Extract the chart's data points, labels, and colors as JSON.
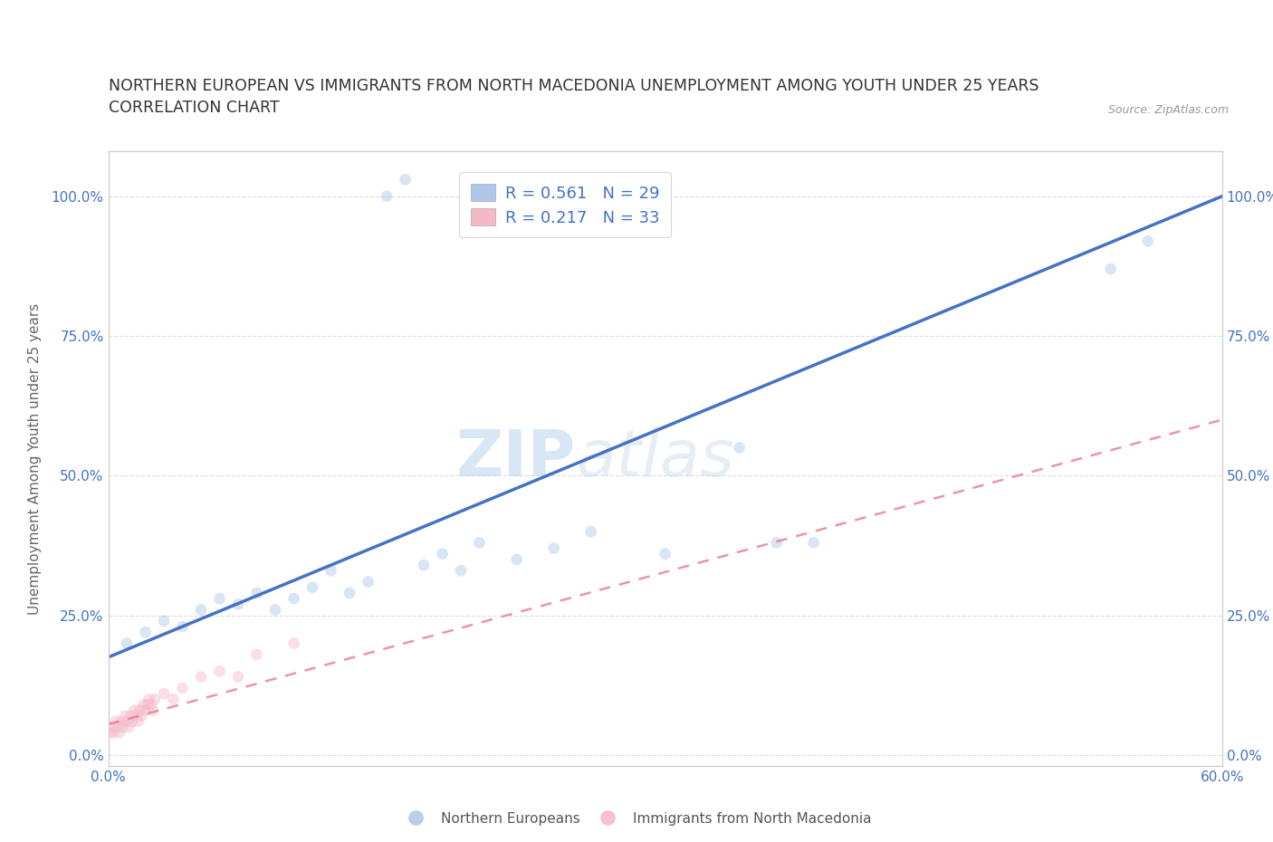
{
  "title_line1": "NORTHERN EUROPEAN VS IMMIGRANTS FROM NORTH MACEDONIA UNEMPLOYMENT AMONG YOUTH UNDER 25 YEARS",
  "title_line2": "CORRELATION CHART",
  "source": "Source: ZipAtlas.com",
  "ylabel": "Unemployment Among Youth under 25 years",
  "xmin": 0.0,
  "xmax": 0.6,
  "ymin": -0.02,
  "ymax": 1.08,
  "xticks": [
    0.0,
    0.1,
    0.2,
    0.3,
    0.4,
    0.5,
    0.6
  ],
  "yticks": [
    0.0,
    0.25,
    0.5,
    0.75,
    1.0
  ],
  "ytick_labels": [
    "0.0%",
    "25.0%",
    "50.0%",
    "75.0%",
    "100.0%"
  ],
  "xtick_labels": [
    "0.0%",
    "",
    "",
    "",
    "",
    "",
    "60.0%"
  ],
  "watermark_zip": "ZIP",
  "watermark_atlas": "atlas",
  "blue_color": "#aec6e8",
  "pink_color": "#f5b8c8",
  "blue_line_color": "#4472c4",
  "pink_line_color": "#e8708a",
  "legend_blue_label_r": "R = 0.561",
  "legend_blue_label_n": "N = 29",
  "legend_pink_label_r": "R = 0.217",
  "legend_pink_label_n": "N = 33",
  "blue_x": [
    0.01,
    0.02,
    0.03,
    0.04,
    0.05,
    0.06,
    0.07,
    0.08,
    0.09,
    0.1,
    0.11,
    0.12,
    0.13,
    0.14,
    0.15,
    0.16,
    0.17,
    0.18,
    0.19,
    0.2,
    0.22,
    0.24,
    0.26,
    0.3,
    0.34,
    0.36,
    0.38,
    0.54,
    0.56
  ],
  "blue_y": [
    0.2,
    0.22,
    0.24,
    0.23,
    0.26,
    0.28,
    0.27,
    0.29,
    0.26,
    0.28,
    0.3,
    0.33,
    0.29,
    0.31,
    1.0,
    1.03,
    0.34,
    0.36,
    0.33,
    0.38,
    0.35,
    0.37,
    0.4,
    0.36,
    0.55,
    0.38,
    0.38,
    0.87,
    0.92
  ],
  "pink_x": [
    0.001,
    0.002,
    0.003,
    0.004,
    0.005,
    0.006,
    0.007,
    0.008,
    0.009,
    0.01,
    0.011,
    0.012,
    0.013,
    0.014,
    0.015,
    0.016,
    0.017,
    0.018,
    0.019,
    0.02,
    0.021,
    0.022,
    0.023,
    0.024,
    0.025,
    0.03,
    0.035,
    0.04,
    0.05,
    0.06,
    0.07,
    0.08,
    0.1
  ],
  "pink_y": [
    0.04,
    0.05,
    0.04,
    0.06,
    0.05,
    0.04,
    0.06,
    0.05,
    0.07,
    0.06,
    0.05,
    0.07,
    0.06,
    0.08,
    0.07,
    0.06,
    0.08,
    0.07,
    0.09,
    0.08,
    0.09,
    0.1,
    0.09,
    0.08,
    0.1,
    0.11,
    0.1,
    0.12,
    0.14,
    0.15,
    0.14,
    0.18,
    0.2
  ],
  "blue_line_x0": 0.0,
  "blue_line_y0": 0.175,
  "blue_line_x1": 0.6,
  "blue_line_y1": 1.0,
  "pink_line_x0": 0.0,
  "pink_line_y0": 0.055,
  "pink_line_x1": 0.6,
  "pink_line_y1": 0.6,
  "grid_color": "#dddddd",
  "background_color": "#ffffff",
  "axis_color": "#cccccc",
  "tick_color": "#4472c4",
  "title_fontsize": 12.5,
  "axis_label_fontsize": 11,
  "tick_fontsize": 11,
  "legend_fontsize": 13,
  "marker_size": 85,
  "marker_alpha": 0.45
}
